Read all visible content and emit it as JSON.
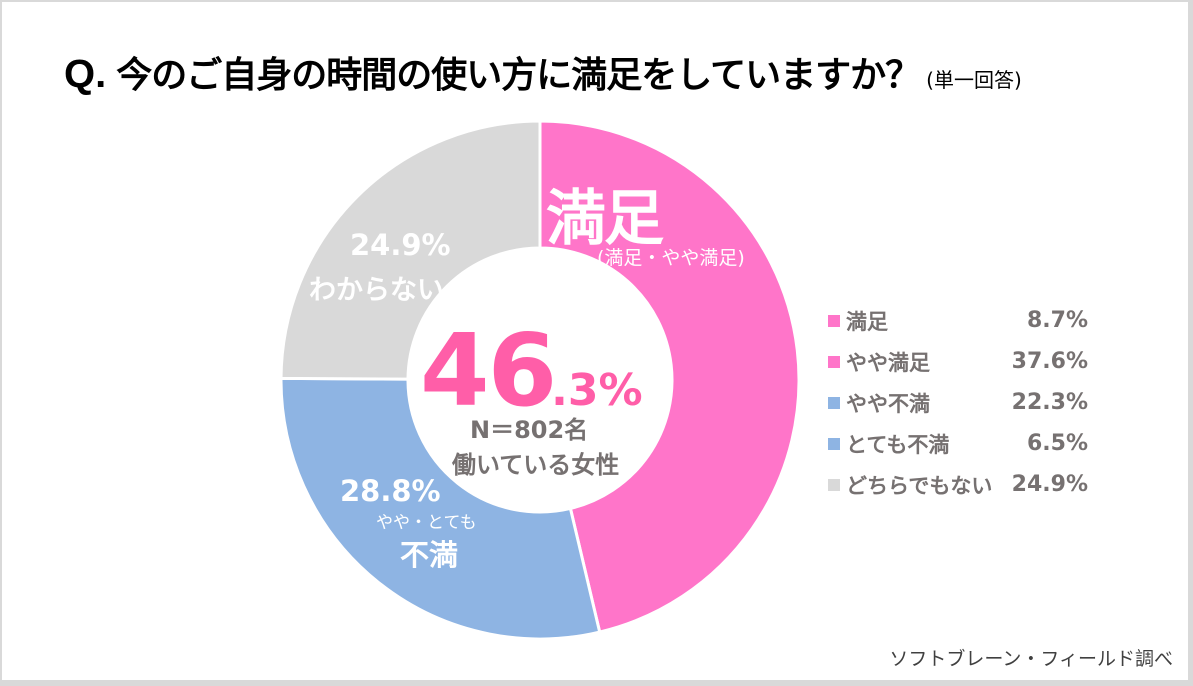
{
  "title": {
    "q": "Q.",
    "main": "今のご自身の時間の使い方に満足をしていますか？",
    "sub": "(単一回答)"
  },
  "colors": {
    "satisfied": "#ff75c9",
    "dissatisfied": "#8eb4e3",
    "dont_know": "#d9d9d9",
    "center_accent": "#ff5ea8",
    "legend_text": "#767171",
    "separator": "#ffffff"
  },
  "chart_data": {
    "type": "pie",
    "subtype": "donut",
    "title": "今のご自身の時間の使い方に満足をしていますか？",
    "start": "top (12 o'clock), clockwise",
    "slices": [
      {
        "name": "満足（満足・やや満足）",
        "value": 46.3,
        "color_key": "satisfied"
      },
      {
        "name": "不満（やや・とても不満）",
        "value": 28.8,
        "color_key": "dissatisfied"
      },
      {
        "name": "わからない",
        "value": 24.9,
        "color_key": "dont_know"
      }
    ],
    "legend": [
      {
        "label": "満足",
        "value": 8.7,
        "display": "8.7%",
        "color_key": "satisfied"
      },
      {
        "label": "やや満足",
        "value": 37.6,
        "display": "37.6%",
        "color_key": "satisfied"
      },
      {
        "label": "やや不満",
        "value": 22.3,
        "display": "22.3%",
        "color_key": "dissatisfied"
      },
      {
        "label": "とても不満",
        "value": 6.5,
        "display": "6.5%",
        "color_key": "dissatisfied"
      },
      {
        "label": "どちらでもない",
        "value": 24.9,
        "display": "24.9%",
        "color_key": "dont_know"
      }
    ],
    "legend_position": "right"
  },
  "labels": {
    "satisfied_big": "満足",
    "satisfied_sub": "(満足・やや満足)",
    "dont_know_pct": "24.9%",
    "dont_know_name": "わからない",
    "dissatisfied_pct": "28.8%",
    "dissatisfied_sub": "やや・とても",
    "dissatisfied_name": "不満"
  },
  "center": {
    "value_int": "46",
    "value_dec": ".3%",
    "n_label": "N＝802名",
    "population": "働いている女性"
  },
  "credit": "ソフトブレーン・フィールド調べ"
}
